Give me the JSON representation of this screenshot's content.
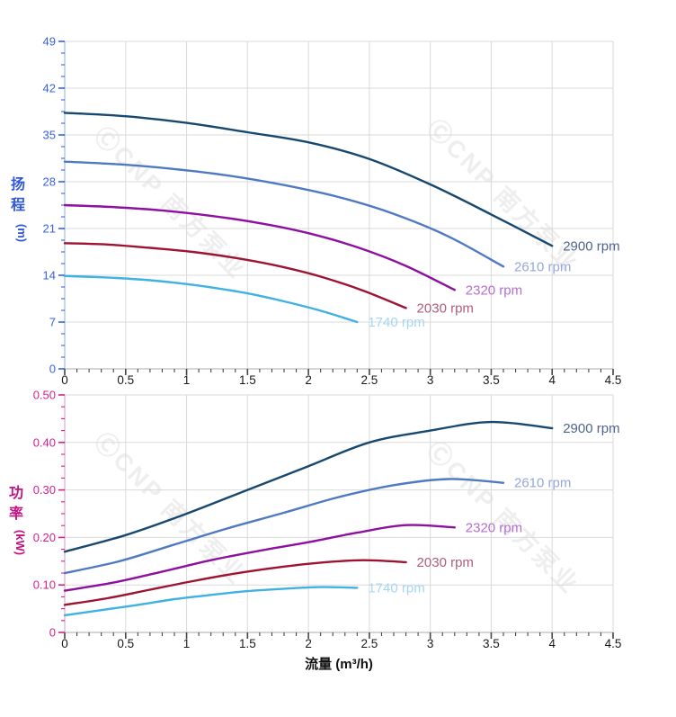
{
  "watermark": {
    "text": "ⒸCNP 南方泵业",
    "color": "#9a9a9a",
    "opacity": 0.16
  },
  "colors": {
    "grid": "#d9d9d9",
    "x_spine": "#bcbcbc",
    "x_tick": "#444444",
    "x_label": "#1a1a1a",
    "x_title": "#111111",
    "head_axis": "#3a5fdf",
    "head_title": "#3156d8",
    "head_spine": "#aabfe8",
    "power_axis": "#d61f8e",
    "power_title": "#c31383",
    "power_spine": "#e0b0d0"
  },
  "chart_data": [
    {
      "type": "line",
      "name": "head-curve-chart",
      "ylabel": "扬程(m)",
      "ylabel_stack": [
        "扬",
        "程"
      ],
      "ylabel_unit": "(m)",
      "xlabel": "",
      "xlim": [
        0,
        4.5
      ],
      "ylim": [
        0,
        49
      ],
      "grid": true,
      "legend_position": "end-of-line",
      "x_tick_values": [
        0,
        0.5,
        1,
        1.5,
        2,
        2.5,
        3,
        3.5,
        4,
        4.5
      ],
      "x_tick_labels": [
        "0",
        "0.5",
        "1",
        "1.5",
        "2",
        "2.5",
        "3",
        "3.5",
        "4",
        "4.5"
      ],
      "x_minor_step": 0.1,
      "y_tick_values": [
        0,
        7,
        14,
        21,
        28,
        35,
        42,
        49
      ],
      "y_tick_labels": [
        "0",
        "7",
        "14",
        "21",
        "28",
        "35",
        "42",
        "49"
      ],
      "y_minor_step": 1.75,
      "series": [
        {
          "name": "2900 rpm",
          "color": "#17486f",
          "label_color": "#4d648c",
          "points": [
            [
              0,
              38.3
            ],
            [
              0.5,
              37.8
            ],
            [
              1,
              36.8
            ],
            [
              1.5,
              35.4
            ],
            [
              2,
              33.9
            ],
            [
              2.5,
              31.4
            ],
            [
              3,
              27.6
            ],
            [
              3.5,
              23.1
            ],
            [
              4,
              18.4
            ]
          ]
        },
        {
          "name": "2610 rpm",
          "color": "#4f7ac2",
          "label_color": "#96a6d8",
          "points": [
            [
              0,
              31.0
            ],
            [
              0.45,
              30.6
            ],
            [
              0.9,
              29.9
            ],
            [
              1.35,
              28.9
            ],
            [
              1.8,
              27.5
            ],
            [
              2.25,
              25.7
            ],
            [
              2.7,
              23.2
            ],
            [
              3.15,
              19.8
            ],
            [
              3.6,
              15.3
            ]
          ]
        },
        {
          "name": "2320 rpm",
          "color": "#8e10a0",
          "label_color": "#b46fce",
          "points": [
            [
              0,
              24.5
            ],
            [
              0.4,
              24.2
            ],
            [
              0.8,
              23.7
            ],
            [
              1.2,
              22.9
            ],
            [
              1.6,
              21.8
            ],
            [
              2,
              20.3
            ],
            [
              2.4,
              18.2
            ],
            [
              2.8,
              15.4
            ],
            [
              3.2,
              11.8
            ]
          ]
        },
        {
          "name": "2030 rpm",
          "color": "#9e1332",
          "label_color": "#ae5e76",
          "points": [
            [
              0,
              18.8
            ],
            [
              0.35,
              18.6
            ],
            [
              0.7,
              18.1
            ],
            [
              1.05,
              17.5
            ],
            [
              1.4,
              16.6
            ],
            [
              1.75,
              15.4
            ],
            [
              2.1,
              13.8
            ],
            [
              2.45,
              11.7
            ],
            [
              2.8,
              9.1
            ]
          ]
        },
        {
          "name": "1740 rpm",
          "color": "#3fb1e3",
          "label_color": "#a4d7f2",
          "points": [
            [
              0,
              13.9
            ],
            [
              0.3,
              13.7
            ],
            [
              0.6,
              13.4
            ],
            [
              0.9,
              12.9
            ],
            [
              1.2,
              12.2
            ],
            [
              1.5,
              11.3
            ],
            [
              1.8,
              10.1
            ],
            [
              2.1,
              8.7
            ],
            [
              2.4,
              7.0
            ]
          ]
        }
      ]
    },
    {
      "type": "line",
      "name": "power-curve-chart",
      "ylabel": "功率(kW)",
      "ylabel_stack": [
        "功",
        "率"
      ],
      "ylabel_unit": "(kW)",
      "xlabel": "流量 (m³/h)",
      "xlim": [
        0,
        4.5
      ],
      "ylim": [
        0,
        0.5
      ],
      "grid": true,
      "legend_position": "end-of-line",
      "x_tick_values": [
        0,
        0.5,
        1,
        1.5,
        2,
        2.5,
        3,
        3.5,
        4,
        4.5
      ],
      "x_tick_labels": [
        "0",
        "0.5",
        "1",
        "1.5",
        "2",
        "2.5",
        "3",
        "3.5",
        "4",
        "4.5"
      ],
      "x_minor_step": 0.1,
      "y_tick_values": [
        0,
        0.1,
        0.2,
        0.3,
        0.4,
        0.5
      ],
      "y_tick_labels": [
        "0",
        "0.10",
        "0.20",
        "0.30",
        "0.40",
        "0.50"
      ],
      "y_minor_step": 0.025,
      "series": [
        {
          "name": "2900 rpm",
          "color": "#17486f",
          "label_color": "#4d648c",
          "points": [
            [
              0,
              0.17
            ],
            [
              0.5,
              0.205
            ],
            [
              1,
              0.25
            ],
            [
              1.5,
              0.3
            ],
            [
              2,
              0.35
            ],
            [
              2.5,
              0.4
            ],
            [
              3,
              0.425
            ],
            [
              3.5,
              0.443
            ],
            [
              4,
              0.43
            ]
          ]
        },
        {
          "name": "2610 rpm",
          "color": "#4f7ac2",
          "label_color": "#96a6d8",
          "points": [
            [
              0,
              0.125
            ],
            [
              0.45,
              0.15
            ],
            [
              0.9,
              0.185
            ],
            [
              1.35,
              0.22
            ],
            [
              1.8,
              0.252
            ],
            [
              2.25,
              0.285
            ],
            [
              2.7,
              0.31
            ],
            [
              3.15,
              0.323
            ],
            [
              3.6,
              0.315
            ]
          ]
        },
        {
          "name": "2320 rpm",
          "color": "#8e10a0",
          "label_color": "#b46fce",
          "points": [
            [
              0,
              0.088
            ],
            [
              0.4,
              0.105
            ],
            [
              0.8,
              0.128
            ],
            [
              1.2,
              0.152
            ],
            [
              1.6,
              0.172
            ],
            [
              2,
              0.19
            ],
            [
              2.4,
              0.21
            ],
            [
              2.8,
              0.226
            ],
            [
              3.2,
              0.221
            ]
          ]
        },
        {
          "name": "2030 rpm",
          "color": "#9e1332",
          "label_color": "#ae5e76",
          "points": [
            [
              0,
              0.058
            ],
            [
              0.35,
              0.072
            ],
            [
              0.7,
              0.09
            ],
            [
              1.05,
              0.108
            ],
            [
              1.4,
              0.124
            ],
            [
              1.75,
              0.137
            ],
            [
              2.1,
              0.147
            ],
            [
              2.45,
              0.152
            ],
            [
              2.8,
              0.148
            ]
          ]
        },
        {
          "name": "1740 rpm",
          "color": "#3fb1e3",
          "label_color": "#a4d7f2",
          "points": [
            [
              0,
              0.036
            ],
            [
              0.3,
              0.047
            ],
            [
              0.6,
              0.058
            ],
            [
              0.9,
              0.07
            ],
            [
              1.2,
              0.079
            ],
            [
              1.5,
              0.087
            ],
            [
              1.8,
              0.092
            ],
            [
              2.1,
              0.0955
            ],
            [
              2.4,
              0.094
            ]
          ]
        }
      ]
    }
  ]
}
